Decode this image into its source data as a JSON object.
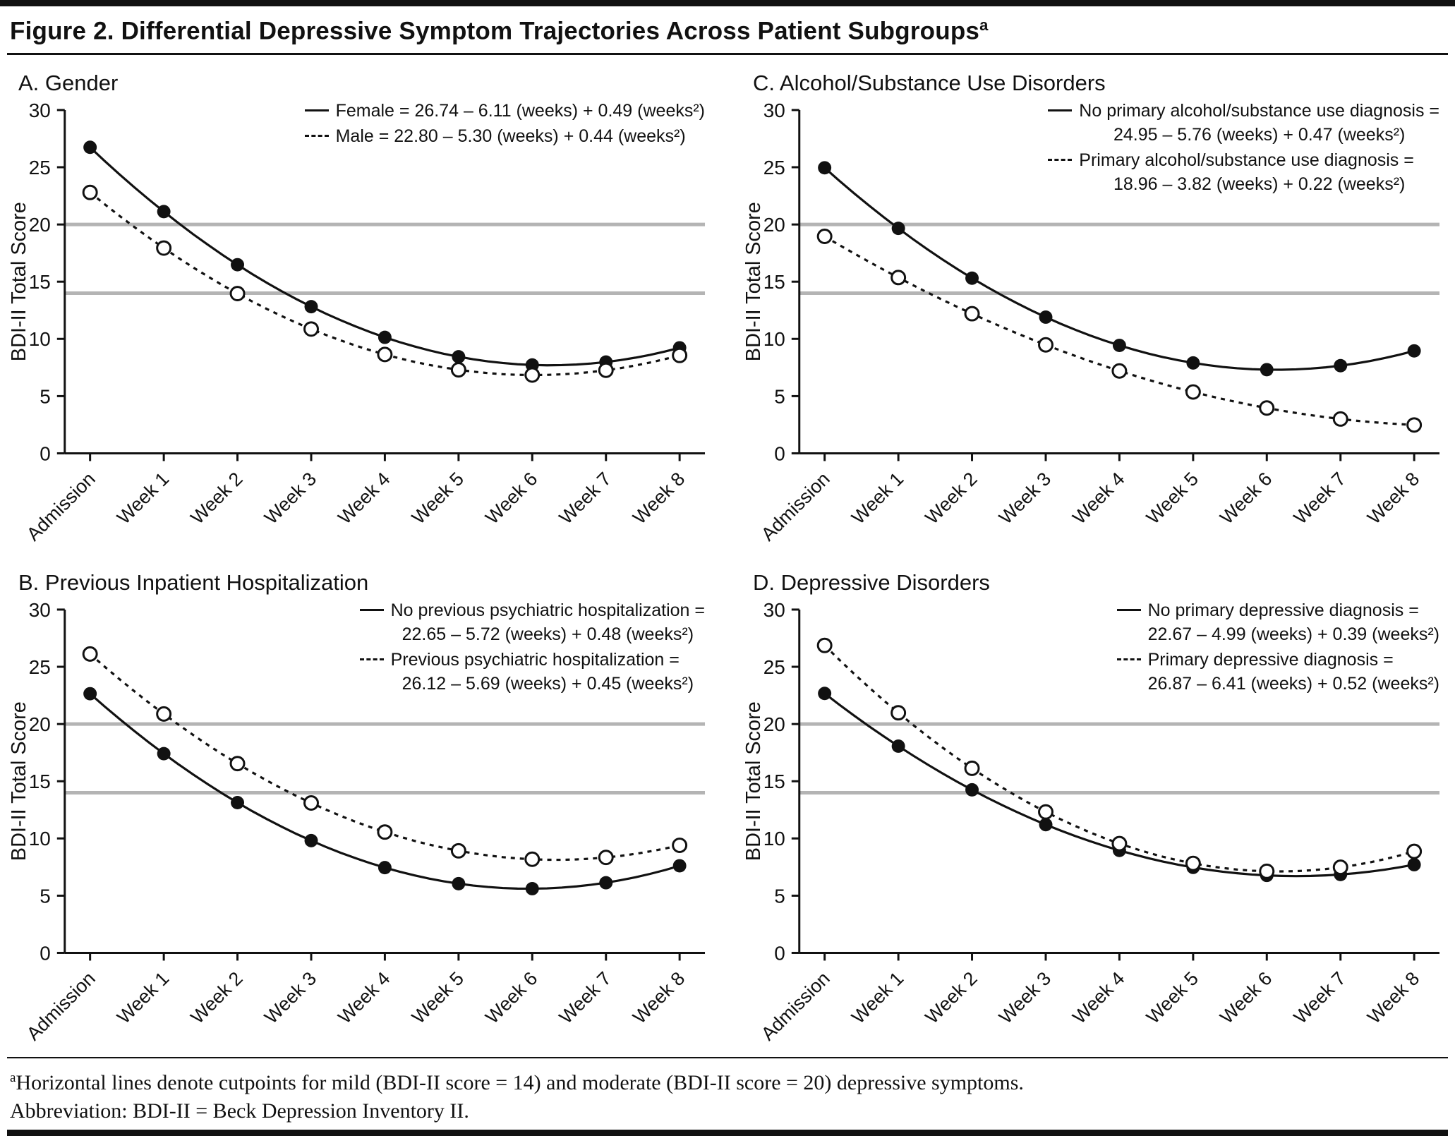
{
  "colors": {
    "line": "#111111",
    "cutline": "#b4b4b4",
    "background": "#ffffff"
  },
  "page": {
    "title": "Figure 2. Differential Depressive Symptom Trajectories Across Patient Subgroups",
    "title_superscript": "a",
    "footnote_marker": "a",
    "footnote": "Horizontal lines denote cutpoints for mild (BDI-II score = 14) and moderate (BDI-II score = 20) depressive symptoms.",
    "abbreviation": "Abbreviation: BDI-II = Beck Depression Inventory II."
  },
  "chart_data": [
    {
      "id": "panel-a",
      "type": "line",
      "title": "A. Gender",
      "ylabel": "BDI-II Total Score",
      "ylim": [
        0,
        30
      ],
      "yticks": [
        0,
        5,
        10,
        15,
        20,
        25,
        30
      ],
      "categories": [
        "Admission",
        "Week 1",
        "Week 2",
        "Week 3",
        "Week 4",
        "Week 5",
        "Week 6",
        "Week 7",
        "Week 8"
      ],
      "cutlines": [
        14,
        20
      ],
      "legend_position": "top-right",
      "series": [
        {
          "name": "Female",
          "line": "solid",
          "marker": "filled",
          "equation": {
            "intercept": 26.74,
            "weeks": -6.11,
            "weeks2": 0.49
          },
          "legend_lines": [
            "Female = 26.74 – 6.11 (weeks) + 0.49 (weeks²)"
          ],
          "values": [
            26.74,
            21.12,
            16.48,
            12.82,
            10.14,
            8.44,
            7.72,
            7.98,
            9.22
          ]
        },
        {
          "name": "Male",
          "line": "dashed",
          "marker": "open",
          "equation": {
            "intercept": 22.8,
            "weeks": -5.3,
            "weeks2": 0.44
          },
          "legend_lines": [
            "Male = 22.80 – 5.30 (weeks) + 0.44 (weeks²)"
          ],
          "values": [
            22.8,
            17.94,
            13.96,
            10.86,
            8.64,
            7.3,
            6.84,
            7.26,
            8.56
          ]
        }
      ]
    },
    {
      "id": "panel-c",
      "type": "line",
      "title": "C. Alcohol/Substance Use Disorders",
      "ylabel": "BDI-II Total Score",
      "ylim": [
        0,
        30
      ],
      "yticks": [
        0,
        5,
        10,
        15,
        20,
        25,
        30
      ],
      "categories": [
        "Admission",
        "Week 1",
        "Week 2",
        "Week 3",
        "Week 4",
        "Week 5",
        "Week 6",
        "Week 7",
        "Week 8"
      ],
      "cutlines": [
        14,
        20
      ],
      "legend_position": "top-right",
      "series": [
        {
          "name": "No primary alcohol/substance use diagnosis",
          "line": "solid",
          "marker": "filled",
          "equation": {
            "intercept": 24.95,
            "weeks": -5.76,
            "weeks2": 0.47
          },
          "legend_lines": [
            "No primary alcohol/substance use diagnosis =",
            "24.95 – 5.76 (weeks) + 0.47 (weeks²)"
          ],
          "values": [
            24.95,
            19.66,
            15.31,
            11.9,
            9.43,
            7.9,
            7.31,
            7.66,
            8.95
          ]
        },
        {
          "name": "Primary alcohol/substance use diagnosis",
          "line": "dashed",
          "marker": "open",
          "equation": {
            "intercept": 18.96,
            "weeks": -3.82,
            "weeks2": 0.22
          },
          "legend_lines": [
            "Primary alcohol/substance use diagnosis =",
            "18.96 – 3.82 (weeks) + 0.22 (weeks²)"
          ],
          "values": [
            18.96,
            15.36,
            12.2,
            9.48,
            7.2,
            5.36,
            3.96,
            3.0,
            2.48
          ]
        }
      ]
    },
    {
      "id": "panel-b",
      "type": "line",
      "title": "B. Previous Inpatient Hospitalization",
      "ylabel": "BDI-II Total Score",
      "ylim": [
        0,
        30
      ],
      "yticks": [
        0,
        5,
        10,
        15,
        20,
        25,
        30
      ],
      "categories": [
        "Admission",
        "Week 1",
        "Week 2",
        "Week 3",
        "Week 4",
        "Week 5",
        "Week 6",
        "Week 7",
        "Week 8"
      ],
      "cutlines": [
        14,
        20
      ],
      "legend_position": "top-right",
      "series": [
        {
          "name": "No previous psychiatric hospitalization",
          "line": "solid",
          "marker": "filled",
          "equation": {
            "intercept": 22.65,
            "weeks": -5.72,
            "weeks2": 0.48
          },
          "legend_lines": [
            "No previous psychiatric hospitalization =",
            "22.65 – 5.72 (weeks) + 0.48 (weeks²)"
          ],
          "values": [
            22.65,
            17.41,
            13.13,
            9.81,
            7.45,
            6.05,
            5.61,
            6.13,
            7.61
          ]
        },
        {
          "name": "Previous psychiatric hospitalization",
          "line": "dashed",
          "marker": "open",
          "equation": {
            "intercept": 26.12,
            "weeks": -5.69,
            "weeks2": 0.45
          },
          "legend_lines": [
            "Previous psychiatric hospitalization =",
            "26.12 – 5.69 (weeks) + 0.45 (weeks²)"
          ],
          "values": [
            26.12,
            20.88,
            16.54,
            13.1,
            10.56,
            8.92,
            8.18,
            8.34,
            9.4
          ]
        }
      ]
    },
    {
      "id": "panel-d",
      "type": "line",
      "title": "D. Depressive Disorders",
      "ylabel": "BDI-II Total Score",
      "ylim": [
        0,
        30
      ],
      "yticks": [
        0,
        5,
        10,
        15,
        20,
        25,
        30
      ],
      "categories": [
        "Admission",
        "Week 1",
        "Week 2",
        "Week 3",
        "Week 4",
        "Week 5",
        "Week 6",
        "Week 7",
        "Week 8"
      ],
      "cutlines": [
        14,
        20
      ],
      "legend_position": "top-right",
      "series": [
        {
          "name": "No primary depressive diagnosis",
          "line": "solid",
          "marker": "filled",
          "equation": {
            "intercept": 22.67,
            "weeks": -4.99,
            "weeks2": 0.39
          },
          "legend_lines": [
            "No primary depressive diagnosis =",
            "22.67 – 4.99 (weeks) + 0.39 (weeks²)"
          ],
          "values": [
            22.67,
            18.07,
            14.25,
            11.21,
            8.95,
            7.47,
            6.77,
            6.85,
            7.71
          ]
        },
        {
          "name": "Primary depressive diagnosis",
          "line": "dashed",
          "marker": "open",
          "equation": {
            "intercept": 26.87,
            "weeks": -6.41,
            "weeks2": 0.52
          },
          "legend_lines": [
            "Primary depressive diagnosis =",
            "26.87 – 6.41 (weeks) + 0.52 (weeks²)"
          ],
          "values": [
            26.87,
            20.98,
            16.13,
            12.32,
            9.55,
            7.82,
            7.13,
            7.48,
            8.87
          ]
        }
      ]
    }
  ]
}
